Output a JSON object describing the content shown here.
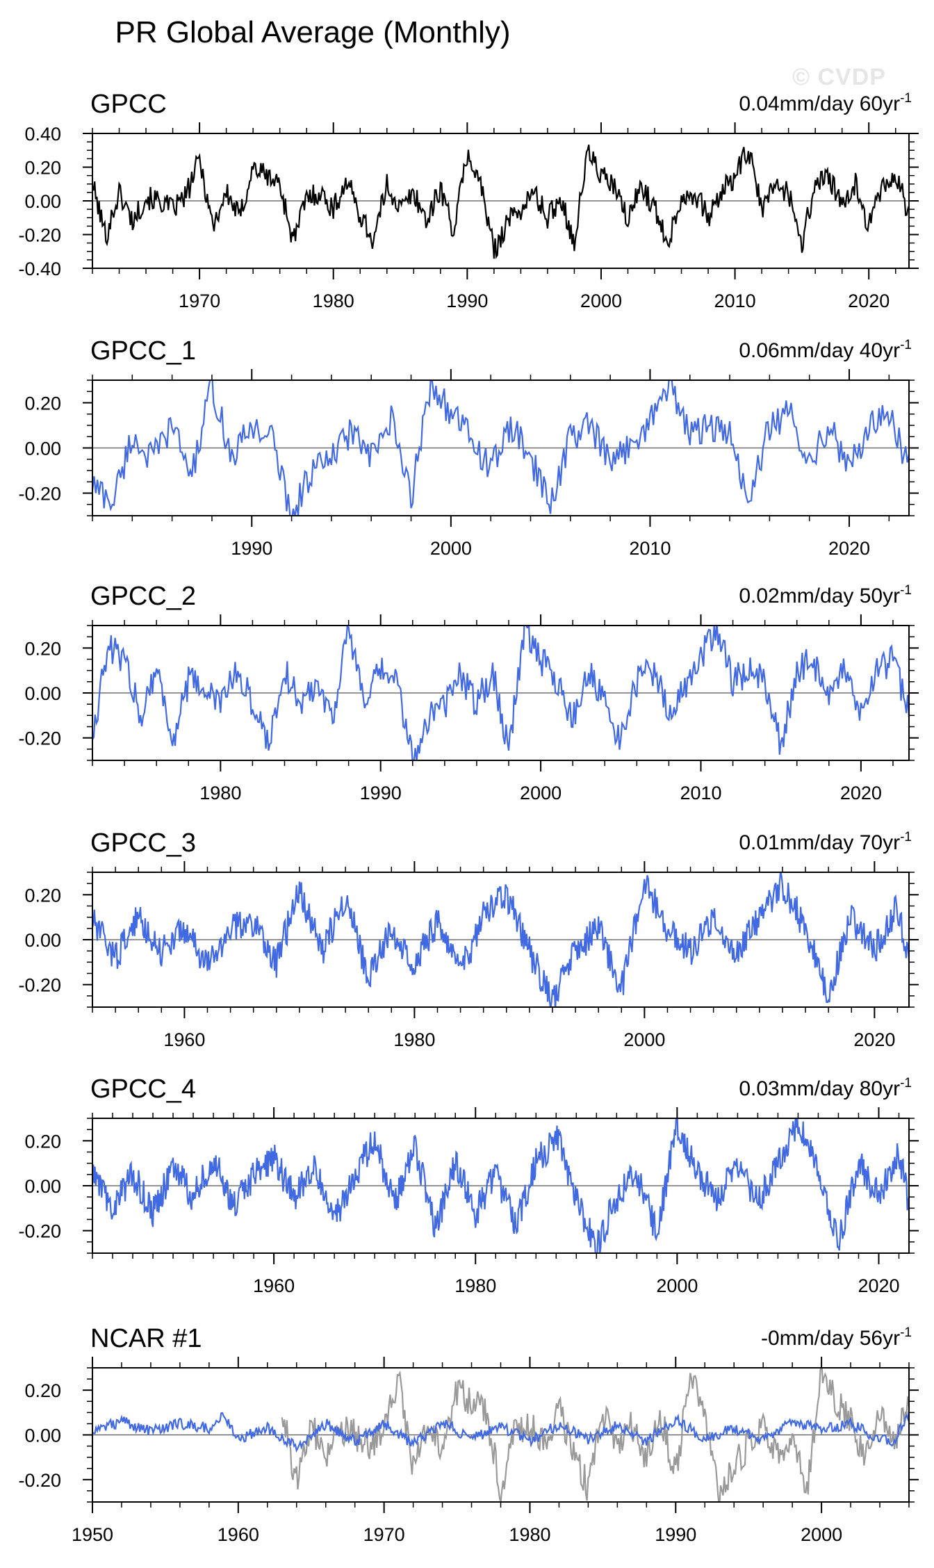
{
  "title": "PR Global Average (Monthly)",
  "watermark": "© CVDP",
  "colors": {
    "observed": "#000000",
    "ensemble": "#4169E1",
    "secondary": "#999999",
    "zero_line": "#555555"
  },
  "chart_data": [
    {
      "type": "line",
      "title": "GPCC",
      "trend_label": "0.04mm/day 60yr",
      "trend_unit_exponent": "-1",
      "xlim": [
        1962,
        2023
      ],
      "ylim": [
        -0.4,
        0.4
      ],
      "yticks": [
        -0.4,
        -0.2,
        0.0,
        0.2,
        0.4
      ],
      "ytick_labels": [
        "-0.40",
        "-0.20",
        "0.00",
        "0.20",
        "0.40"
      ],
      "xticks": [
        1970,
        1980,
        1990,
        2000,
        2010,
        2020
      ],
      "xtick_labels": [
        "1970",
        "1980",
        "1990",
        "2000",
        "2010",
        "2020"
      ],
      "series": [
        {
          "name": "GPCC",
          "color": "#000000",
          "x": [
            1962,
            1963,
            1964,
            1965,
            1966,
            1967,
            1968,
            1969,
            1970,
            1971,
            1972,
            1973,
            1974,
            1975,
            1976,
            1977,
            1978,
            1979,
            1980,
            1981,
            1982,
            1983,
            1984,
            1985,
            1986,
            1987,
            1988,
            1989,
            1990,
            1991,
            1992,
            1993,
            1994,
            1995,
            1996,
            1997,
            1998,
            1999,
            2000,
            2001,
            2002,
            2003,
            2004,
            2005,
            2006,
            2007,
            2008,
            2009,
            2010,
            2011,
            2012,
            2013,
            2014,
            2015,
            2016,
            2017,
            2018,
            2019,
            2020,
            2021,
            2022,
            2023
          ],
          "values": [
            0.1,
            -0.21,
            0.05,
            -0.12,
            0.02,
            0.0,
            -0.05,
            0.03,
            0.25,
            -0.15,
            0.05,
            -0.1,
            0.2,
            0.15,
            0.1,
            -0.24,
            0.02,
            0.05,
            -0.05,
            0.12,
            -0.08,
            -0.24,
            0.1,
            -0.05,
            0.05,
            -0.12,
            0.08,
            -0.18,
            0.28,
            0.1,
            -0.3,
            -0.12,
            -0.05,
            0.05,
            -0.1,
            0.02,
            -0.25,
            0.3,
            0.15,
            0.08,
            -0.12,
            0.1,
            -0.05,
            -0.24,
            0.02,
            0.05,
            -0.1,
            0.05,
            0.15,
            0.3,
            -0.05,
            0.1,
            0.05,
            -0.25,
            0.1,
            0.15,
            -0.05,
            0.1,
            -0.15,
            0.08,
            0.15,
            -0.08
          ]
        }
      ]
    },
    {
      "type": "line",
      "title": "GPCC_1",
      "trend_label": "0.06mm/day 40yr",
      "trend_unit_exponent": "-1",
      "xlim": [
        1982,
        2023
      ],
      "ylim": [
        -0.3,
        0.3
      ],
      "yticks": [
        -0.2,
        0.0,
        0.2
      ],
      "ytick_labels": [
        "-0.20",
        "0.00",
        "0.20"
      ],
      "xticks": [
        1990,
        2000,
        2010,
        2020
      ],
      "xtick_labels": [
        "1990",
        "2000",
        "2010",
        "2020"
      ],
      "series": [
        {
          "name": "GPCC_1",
          "color": "#4169E1",
          "x": [
            1982,
            1983,
            1984,
            1985,
            1986,
            1987,
            1988,
            1989,
            1990,
            1991,
            1992,
            1993,
            1994,
            1995,
            1996,
            1997,
            1998,
            1999,
            2000,
            2001,
            2002,
            2003,
            2004,
            2005,
            2006,
            2007,
            2008,
            2009,
            2010,
            2011,
            2012,
            2013,
            2014,
            2015,
            2016,
            2017,
            2018,
            2019,
            2020,
            2021,
            2022,
            2023
          ],
          "values": [
            -0.16,
            -0.24,
            0.05,
            -0.05,
            0.1,
            -0.12,
            0.28,
            -0.05,
            0.1,
            0.05,
            -0.3,
            -0.1,
            -0.05,
            0.08,
            -0.05,
            0.12,
            -0.22,
            0.3,
            0.15,
            0.05,
            -0.1,
            0.1,
            -0.05,
            -0.25,
            0.05,
            0.1,
            -0.08,
            0.02,
            0.12,
            0.3,
            0.05,
            0.1,
            0.05,
            -0.24,
            0.1,
            0.15,
            -0.05,
            0.1,
            -0.1,
            0.1,
            0.15,
            -0.08
          ]
        }
      ]
    },
    {
      "type": "line",
      "title": "GPCC_2",
      "trend_label": "0.02mm/day 50yr",
      "trend_unit_exponent": "-1",
      "xlim": [
        1972,
        2023
      ],
      "ylim": [
        -0.3,
        0.3
      ],
      "yticks": [
        -0.2,
        0.0,
        0.2
      ],
      "ytick_labels": [
        "-0.20",
        "0.00",
        "0.20"
      ],
      "xticks": [
        1980,
        1990,
        2000,
        2010,
        2020
      ],
      "xtick_labels": [
        "1980",
        "1990",
        "2000",
        "2010",
        "2020"
      ],
      "series": [
        {
          "name": "GPCC_2",
          "color": "#4169E1",
          "x": [
            1972,
            1973,
            1974,
            1975,
            1976,
            1977,
            1978,
            1979,
            1980,
            1981,
            1982,
            1983,
            1984,
            1985,
            1986,
            1987,
            1988,
            1989,
            1990,
            1991,
            1992,
            1993,
            1994,
            1995,
            1996,
            1997,
            1998,
            1999,
            2000,
            2001,
            2002,
            2003,
            2004,
            2005,
            2006,
            2007,
            2008,
            2009,
            2010,
            2011,
            2012,
            2013,
            2014,
            2015,
            2016,
            2017,
            2018,
            2019,
            2020,
            2021,
            2022,
            2023
          ],
          "values": [
            -0.18,
            0.2,
            0.15,
            -0.1,
            0.12,
            -0.22,
            0.05,
            0.02,
            -0.05,
            0.1,
            -0.05,
            -0.22,
            0.1,
            -0.05,
            0.05,
            -0.1,
            0.28,
            -0.05,
            0.1,
            0.05,
            -0.3,
            -0.1,
            -0.05,
            0.08,
            -0.05,
            0.1,
            -0.25,
            0.3,
            0.15,
            0.05,
            -0.12,
            0.1,
            -0.05,
            -0.22,
            0.05,
            0.1,
            -0.08,
            0.02,
            0.15,
            0.3,
            0.05,
            0.1,
            0.05,
            -0.25,
            0.1,
            0.15,
            -0.05,
            0.1,
            -0.1,
            0.1,
            0.15,
            -0.08
          ]
        }
      ]
    },
    {
      "type": "line",
      "title": "GPCC_3",
      "trend_label": "0.01mm/day 70yr",
      "trend_unit_exponent": "-1",
      "xlim": [
        1952,
        2023
      ],
      "ylim": [
        -0.3,
        0.3
      ],
      "yticks": [
        -0.2,
        0.0,
        0.2
      ],
      "ytick_labels": [
        "-0.20",
        "0.00",
        "0.20"
      ],
      "xticks": [
        1960,
        1980,
        2000,
        2020
      ],
      "xtick_labels": [
        "1960",
        "1980",
        "2000",
        "2020"
      ],
      "series": [
        {
          "name": "GPCC_3",
          "color": "#4169E1",
          "x": [
            1952,
            1954,
            1956,
            1958,
            1960,
            1962,
            1964,
            1966,
            1968,
            1970,
            1972,
            1974,
            1976,
            1978,
            1980,
            1982,
            1984,
            1986,
            1988,
            1990,
            1992,
            1994,
            1996,
            1998,
            2000,
            2002,
            2004,
            2006,
            2008,
            2010,
            2012,
            2014,
            2016,
            2018,
            2020,
            2022,
            2023
          ],
          "values": [
            0.08,
            -0.08,
            0.1,
            -0.05,
            0.05,
            -0.12,
            0.05,
            0.08,
            -0.1,
            0.22,
            -0.05,
            0.2,
            -0.18,
            0.05,
            -0.1,
            0.08,
            -0.15,
            0.1,
            0.2,
            -0.05,
            -0.28,
            -0.05,
            0.05,
            -0.22,
            0.25,
            0.05,
            -0.05,
            0.08,
            -0.05,
            0.1,
            0.25,
            0.05,
            -0.25,
            0.1,
            -0.05,
            0.15,
            -0.08
          ]
        }
      ]
    },
    {
      "type": "line",
      "title": "GPCC_4",
      "trend_label": "0.03mm/day 80yr",
      "trend_unit_exponent": "-1",
      "xlim": [
        1942,
        2023
      ],
      "ylim": [
        -0.3,
        0.3
      ],
      "yticks": [
        -0.2,
        0.0,
        0.2
      ],
      "ytick_labels": [
        "-0.20",
        "0.00",
        "0.20"
      ],
      "xticks": [
        1960,
        1980,
        2000,
        2020
      ],
      "xtick_labels": [
        "1960",
        "1980",
        "2000",
        "2020"
      ],
      "series": [
        {
          "name": "GPCC_4",
          "color": "#4169E1",
          "x": [
            1942,
            1944,
            1946,
            1948,
            1950,
            1952,
            1954,
            1956,
            1958,
            1960,
            1962,
            1964,
            1966,
            1968,
            1970,
            1972,
            1974,
            1976,
            1978,
            1980,
            1982,
            1984,
            1986,
            1988,
            1990,
            1992,
            1994,
            1996,
            1998,
            2000,
            2002,
            2004,
            2006,
            2008,
            2010,
            2012,
            2014,
            2016,
            2018,
            2020,
            2022,
            2023
          ],
          "values": [
            0.05,
            -0.1,
            0.05,
            -0.12,
            0.08,
            -0.05,
            0.12,
            -0.1,
            0.05,
            0.12,
            -0.05,
            0.1,
            -0.15,
            0.05,
            0.2,
            -0.08,
            0.18,
            -0.2,
            0.1,
            -0.12,
            0.05,
            -0.18,
            0.1,
            0.22,
            -0.05,
            -0.28,
            -0.05,
            0.05,
            -0.22,
            0.28,
            0.05,
            -0.05,
            0.08,
            -0.08,
            0.1,
            0.28,
            0.05,
            -0.25,
            0.1,
            -0.05,
            0.15,
            -0.08
          ]
        }
      ]
    },
    {
      "type": "line",
      "title": "NCAR #1",
      "trend_label": "-0mm/day 56yr",
      "trend_unit_exponent": "-1",
      "xlim": [
        1950,
        2006
      ],
      "ylim": [
        -0.3,
        0.3
      ],
      "yticks": [
        -0.2,
        0.0,
        0.2
      ],
      "ytick_labels": [
        "-0.20",
        "0.00",
        "0.20"
      ],
      "xticks": [
        1950,
        1960,
        1970,
        1980,
        1990,
        2000
      ],
      "xtick_labels": [
        "1950",
        "1960",
        "1970",
        "1980",
        "1990",
        "2000"
      ],
      "series": [
        {
          "name": "GPCC",
          "color": "#999999",
          "x": [
            1963,
            1964,
            1965,
            1966,
            1967,
            1968,
            1969,
            1970,
            1971,
            1972,
            1973,
            1974,
            1975,
            1976,
            1977,
            1978,
            1979,
            1980,
            1981,
            1982,
            1983,
            1984,
            1985,
            1986,
            1987,
            1988,
            1989,
            1990,
            1991,
            1992,
            1993,
            1994,
            1995,
            1996,
            1997,
            1998,
            1999,
            2000,
            2001,
            2002,
            2003,
            2004,
            2005,
            2006
          ],
          "values": [
            0.1,
            -0.21,
            0.05,
            -0.12,
            0.02,
            0.0,
            -0.05,
            0.03,
            0.25,
            -0.15,
            0.05,
            -0.1,
            0.2,
            0.15,
            0.1,
            -0.24,
            0.02,
            0.05,
            -0.05,
            0.12,
            -0.08,
            -0.24,
            0.1,
            -0.05,
            0.05,
            -0.12,
            0.08,
            -0.18,
            0.28,
            0.1,
            -0.3,
            -0.12,
            -0.05,
            0.05,
            -0.1,
            0.02,
            -0.25,
            0.3,
            0.15,
            0.08,
            -0.12,
            0.1,
            -0.05,
            0.15
          ]
        },
        {
          "name": "NCAR #1",
          "color": "#4169E1",
          "x": [
            1950,
            1952,
            1954,
            1956,
            1958,
            1959,
            1960,
            1962,
            1964,
            1966,
            1968,
            1970,
            1972,
            1974,
            1976,
            1978,
            1980,
            1982,
            1984,
            1986,
            1988,
            1990,
            1992,
            1994,
            1996,
            1998,
            2000,
            2002,
            2004,
            2005,
            2006
          ],
          "values": [
            0.02,
            0.06,
            0.02,
            0.05,
            0.03,
            0.09,
            -0.02,
            0.03,
            -0.05,
            0.05,
            -0.03,
            0.05,
            -0.04,
            0.06,
            -0.02,
            0.04,
            -0.03,
            0.05,
            -0.02,
            0.04,
            -0.03,
            0.07,
            -0.02,
            0.03,
            -0.02,
            0.06,
            0.02,
            0.05,
            -0.02,
            -0.03,
            0.1
          ]
        }
      ]
    }
  ]
}
